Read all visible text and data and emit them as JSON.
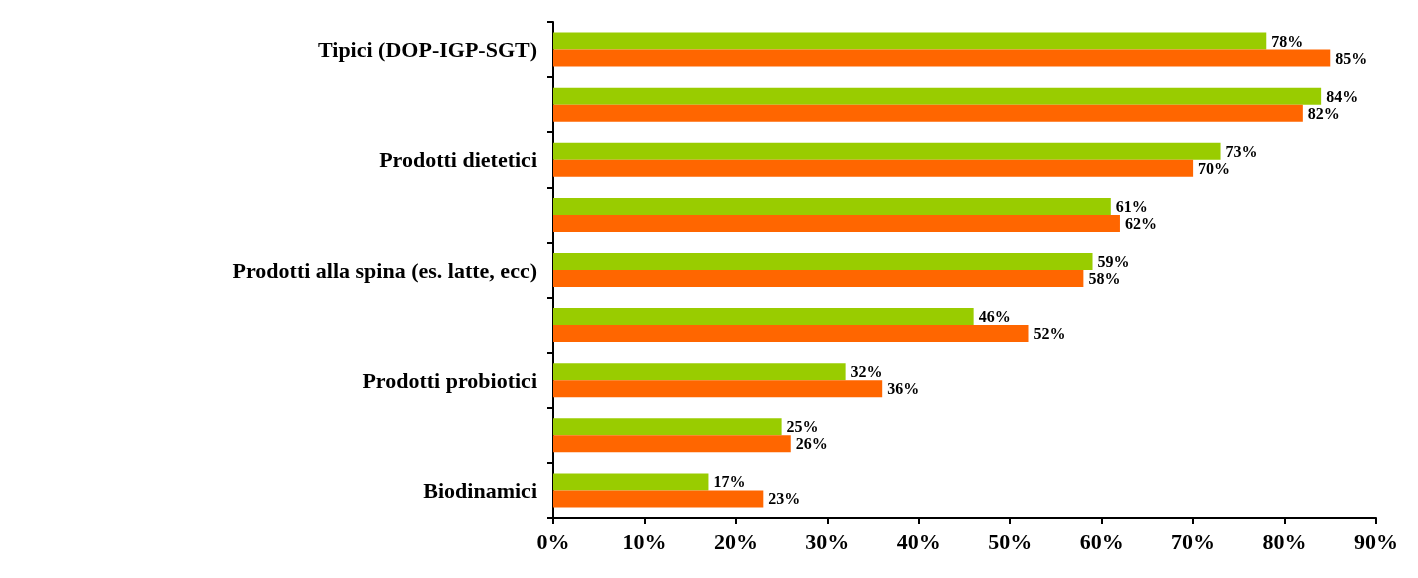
{
  "chart_data": {
    "type": "bar",
    "orientation": "horizontal",
    "categories": [
      "Tipici (DOP-IGP-SGT)",
      null,
      "Prodotti dietetici",
      null,
      "Prodotti alla spina (es. latte, ecc)",
      null,
      "Prodotti probiotici",
      null,
      "Biodinamici"
    ],
    "series": [
      {
        "color": "#99cc00",
        "values": [
          78,
          84,
          73,
          61,
          59,
          46,
          32,
          25,
          17
        ],
        "value_labels": [
          "78%",
          "84%",
          "73%",
          "61%",
          "59%",
          "46%",
          "32%",
          "25%",
          "17%"
        ]
      },
      {
        "color": "#ff6600",
        "values": [
          85,
          82,
          70,
          62,
          58,
          52,
          36,
          26,
          23
        ],
        "value_labels": [
          "85%",
          "82%",
          "70%",
          "62%",
          "58%",
          "52%",
          "36%",
          "26%",
          "23%"
        ]
      }
    ],
    "xlim": [
      0,
      90
    ],
    "xticks": [
      {
        "value": 0,
        "label": "0%"
      },
      {
        "value": 10,
        "label": "10%"
      },
      {
        "value": 20,
        "label": "20%"
      },
      {
        "value": 30,
        "label": "30%"
      },
      {
        "value": 40,
        "label": "40%"
      },
      {
        "value": 50,
        "label": "50%"
      },
      {
        "value": 60,
        "label": "60%"
      },
      {
        "value": 70,
        "label": "70%"
      },
      {
        "value": 80,
        "label": "80%"
      },
      {
        "value": 90,
        "label": "90%"
      }
    ],
    "grid": false
  }
}
